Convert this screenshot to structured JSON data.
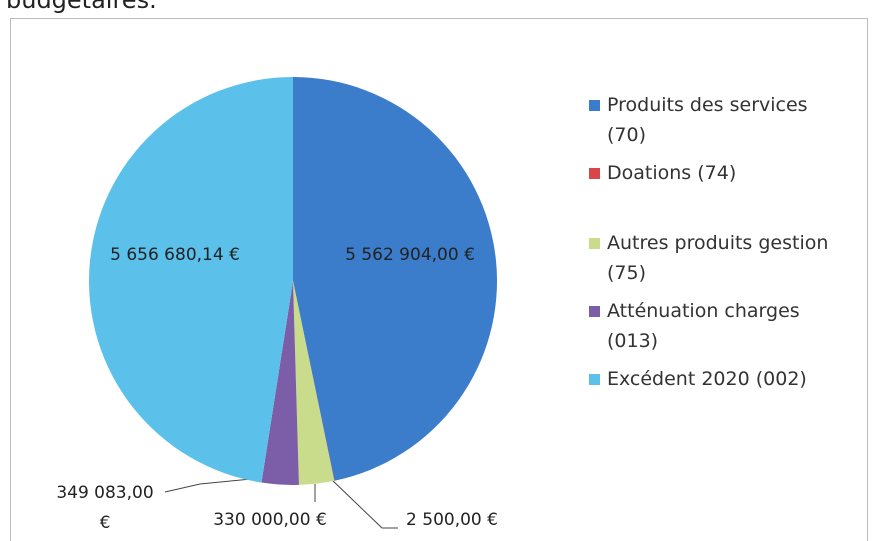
{
  "chart_data": {
    "type": "pie",
    "title": "budgétaires.",
    "categories": [
      "Produits des services (70)",
      "Doations  (74)",
      "Autres produits gestion (75)",
      "Atténuation charges (013)",
      "Excédent 2020 (002)"
    ],
    "values": [
      5562904.0,
      2500.0,
      330000.0,
      349083.0,
      5656680.14
    ],
    "value_labels": [
      "5 562 904,00 €",
      "2 500,00 €",
      "330 000,00 €",
      "349 083,00 €",
      "5 656 680,14 €"
    ],
    "colors": [
      "#3b7ccb",
      "#d9464a",
      "#c8dc8c",
      "#7c5ea8",
      "#5cc1ea"
    ],
    "legend": "right"
  }
}
